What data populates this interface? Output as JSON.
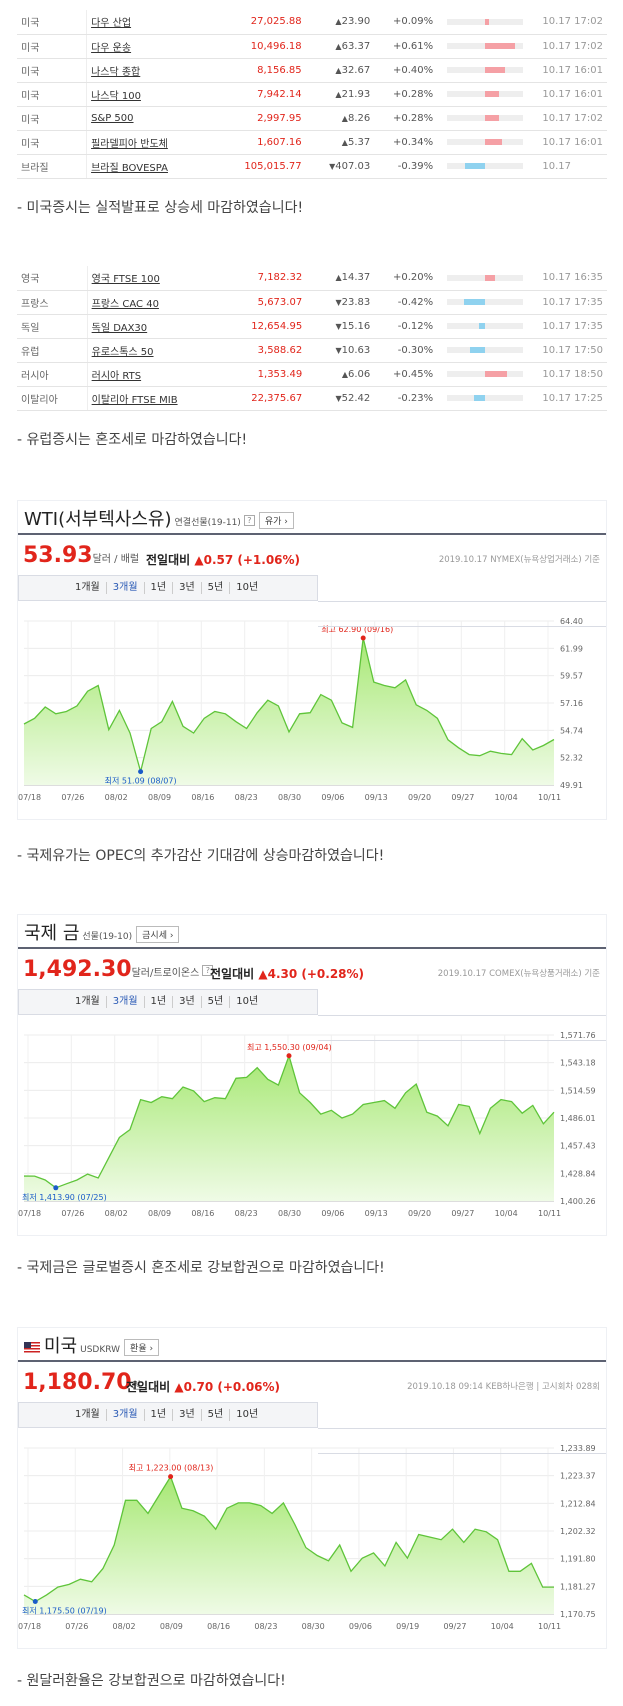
{
  "us_table": [
    {
      "country": "미국",
      "name": "다우 산업",
      "price": "27,025.88",
      "dir": "up",
      "change": "23.90",
      "rate": "+0.09%",
      "bar": 4,
      "time": "10.17 17:02"
    },
    {
      "country": "미국",
      "name": "다우 운송",
      "price": "10,496.18",
      "dir": "up",
      "change": "63.37",
      "rate": "+0.61%",
      "bar": 30,
      "time": "10.17 17:02"
    },
    {
      "country": "미국",
      "name": "나스닥 종합",
      "price": "8,156.85",
      "dir": "up",
      "change": "32.67",
      "rate": "+0.40%",
      "bar": 20,
      "time": "10.17 16:01"
    },
    {
      "country": "미국",
      "name": "나스닥 100",
      "price": "7,942.14",
      "dir": "up",
      "change": "21.93",
      "rate": "+0.28%",
      "bar": 14,
      "time": "10.17 16:01"
    },
    {
      "country": "미국",
      "name": "S&P 500",
      "price": "2,997.95",
      "dir": "up",
      "change": "8.26",
      "rate": "+0.28%",
      "bar": 14,
      "time": "10.17 17:02"
    },
    {
      "country": "미국",
      "name": "필라델피아 반도체",
      "price": "1,607.16",
      "dir": "up",
      "change": "5.37",
      "rate": "+0.34%",
      "bar": 17,
      "time": "10.17 16:01"
    },
    {
      "country": "브라질",
      "name": "브라질 BOVESPA",
      "price": "105,015.77",
      "dir": "down",
      "change": "407.03",
      "rate": "-0.39%",
      "bar": 20,
      "time": "10.17"
    }
  ],
  "us_comment": "- 미국증시는 실적발표로 상승세 마감하였습니다!",
  "eu_table": [
    {
      "country": "영국",
      "name": "영국 FTSE 100",
      "price": "7,182.32",
      "dir": "up",
      "change": "14.37",
      "rate": "+0.20%",
      "bar": 10,
      "time": "10.17 16:35"
    },
    {
      "country": "프랑스",
      "name": "프랑스 CAC 40",
      "price": "5,673.07",
      "dir": "down",
      "change": "23.83",
      "rate": "-0.42%",
      "bar": 21,
      "time": "10.17 17:35"
    },
    {
      "country": "독일",
      "name": "독일 DAX30",
      "price": "12,654.95",
      "dir": "down",
      "change": "15.16",
      "rate": "-0.12%",
      "bar": 6,
      "time": "10.17 17:35"
    },
    {
      "country": "유럽",
      "name": "유로스톡스 50",
      "price": "3,588.62",
      "dir": "down",
      "change": "10.63",
      "rate": "-0.30%",
      "bar": 15,
      "time": "10.17 17:50"
    },
    {
      "country": "러시아",
      "name": "러시아 RTS",
      "price": "1,353.49",
      "dir": "up",
      "change": "6.06",
      "rate": "+0.45%",
      "bar": 22,
      "time": "10.17 18:50"
    },
    {
      "country": "이탈리아",
      "name": "이탈리아 FTSE MIB",
      "price": "22,375.67",
      "dir": "down",
      "change": "52.42",
      "rate": "-0.23%",
      "bar": 11,
      "time": "10.17 17:25"
    }
  ],
  "eu_comment": "- 유럽증시는 혼조세로 마감하였습니다!",
  "wti": {
    "title": "WTI(서부텍사스유)",
    "sub": "연결선물(19-11)",
    "q": "?",
    "btn": "유가 ›",
    "price": "53.93",
    "unit": "달러 / 배럴",
    "cmp_label": "전일대비",
    "cmp_val": "▲0.57 (+1.06%)",
    "src": "2019.10.17  NYMEX(뉴욕상업거래소) 기준"
  },
  "wti_comment": "- 국제유가는 OPEC의 추가감산 기대감에 상승마감하였습니다!",
  "gold": {
    "title": "국제 금",
    "sub": "선물(19-10)",
    "btn": "금시세 ›",
    "price": "1,492.30",
    "unit": "달러/트로이온스",
    "q": "?",
    "cmp_label": "전일대비",
    "cmp_val": "▲4.30 (+0.28%)",
    "src": "2019.10.17  COMEX(뉴욕상품거래소) 기준"
  },
  "gold_comment": "- 국제금은 글로벌증시 혼조세로 강보합권으로 마감하였습니다!",
  "usd": {
    "title": "미국",
    "sub": "USDKRW",
    "btn": "환율 ›",
    "price": "1,180.70",
    "unit": "원",
    "cmp_label": "전일대비",
    "cmp_val": "▲0.70 (+0.06%)",
    "src": "2019.10.18 09:14  KEB하나은행  |  고시회차 028회"
  },
  "usd_comment": "- 원달러환율은 강보합권으로 마감하였습니다!",
  "tabs": [
    "1개월",
    "3개월",
    "1년",
    "3년",
    "5년",
    "10년"
  ],
  "chart_data": [
    {
      "type": "area",
      "name": "WTI",
      "ylim": [
        49.91,
        64.4
      ],
      "yticks": [
        "64.40",
        "61.99",
        "59.57",
        "57.16",
        "54.74",
        "52.32",
        "49.91"
      ],
      "xticks": [
        "07/18",
        "07/26",
        "08/02",
        "08/09",
        "08/16",
        "08/23",
        "08/30",
        "09/06",
        "09/13",
        "09/20",
        "09/27",
        "10/04",
        "10/11"
      ],
      "values": [
        55.3,
        55.8,
        56.8,
        56.2,
        56.4,
        56.9,
        58.2,
        58.7,
        54.8,
        56.5,
        54.5,
        51.09,
        54.9,
        55.5,
        57.3,
        55.1,
        54.5,
        55.8,
        56.4,
        56.2,
        55.5,
        54.9,
        56.3,
        57.4,
        56.9,
        54.6,
        56.2,
        56.3,
        57.9,
        57.4,
        55.4,
        55.0,
        62.9,
        59.0,
        58.7,
        58.5,
        59.2,
        57.0,
        56.5,
        55.8,
        53.9,
        53.2,
        52.6,
        52.5,
        52.9,
        52.7,
        52.6,
        54.0,
        53.0,
        53.4,
        53.93
      ],
      "high": {
        "label": "최고 62.90 (09/16)",
        "value": 62.9
      },
      "low": {
        "label": "최저 51.09 (08/07)",
        "value": 51.09
      }
    },
    {
      "type": "area",
      "name": "국제 금",
      "ylim": [
        1400.26,
        1571.76
      ],
      "yticks": [
        "1,571.76",
        "1,543.18",
        "1,514.59",
        "1,486.01",
        "1,457.43",
        "1,428.84",
        "1,400.26"
      ],
      "xticks": [
        "07/18",
        "07/26",
        "08/02",
        "08/09",
        "08/16",
        "08/23",
        "08/30",
        "09/06",
        "09/13",
        "09/20",
        "09/27",
        "10/04",
        "10/11"
      ],
      "values": [
        1426,
        1426,
        1422,
        1413.9,
        1418,
        1422,
        1428,
        1424,
        1445,
        1466,
        1474,
        1505,
        1502,
        1508,
        1506,
        1518,
        1514,
        1503,
        1507,
        1506,
        1527,
        1528,
        1538,
        1526,
        1520,
        1550.3,
        1512,
        1502,
        1490,
        1494,
        1486,
        1490,
        1500,
        1502,
        1504,
        1496,
        1512,
        1521,
        1492,
        1488,
        1478,
        1500,
        1498,
        1470,
        1496,
        1505,
        1503,
        1491,
        1499,
        1480,
        1492
      ],
      "high": {
        "label": "최고 1,550.30 (09/04)",
        "value": 1550.3
      },
      "low": {
        "label": "최저 1,413.90 (07/25)",
        "value": 1413.9
      }
    },
    {
      "type": "area",
      "name": "USDKRW",
      "ylim": [
        1170.75,
        1233.89
      ],
      "yticks": [
        "1,233.89",
        "1,223.37",
        "1,212.84",
        "1,202.32",
        "1,191.80",
        "1,181.27",
        "1,170.75"
      ],
      "xticks": [
        "07/18",
        "07/26",
        "08/02",
        "08/09",
        "08/16",
        "08/23",
        "08/30",
        "09/06",
        "09/19",
        "09/27",
        "10/04",
        "10/11"
      ],
      "values": [
        1178,
        1175.5,
        1178,
        1181,
        1182,
        1184,
        1183,
        1188,
        1197,
        1214,
        1214,
        1209,
        1216,
        1223,
        1211,
        1210,
        1208,
        1203,
        1211,
        1213,
        1213,
        1212,
        1209,
        1213,
        1205,
        1196,
        1193,
        1191,
        1197,
        1187,
        1192,
        1194,
        1189,
        1198,
        1192,
        1201,
        1200,
        1199,
        1203,
        1198,
        1203,
        1202,
        1199,
        1187,
        1187,
        1190,
        1181,
        1181
      ],
      "high": {
        "label": "최고 1,223.00 (08/13)",
        "value": 1223.0
      },
      "low": {
        "label": "최저 1,175.50 (07/19)",
        "value": 1175.5
      }
    }
  ],
  "colors": {
    "up": "#e1251b",
    "down": "#1a5cc8",
    "area": "#b8ec8a",
    "line": "#5fc43a"
  }
}
